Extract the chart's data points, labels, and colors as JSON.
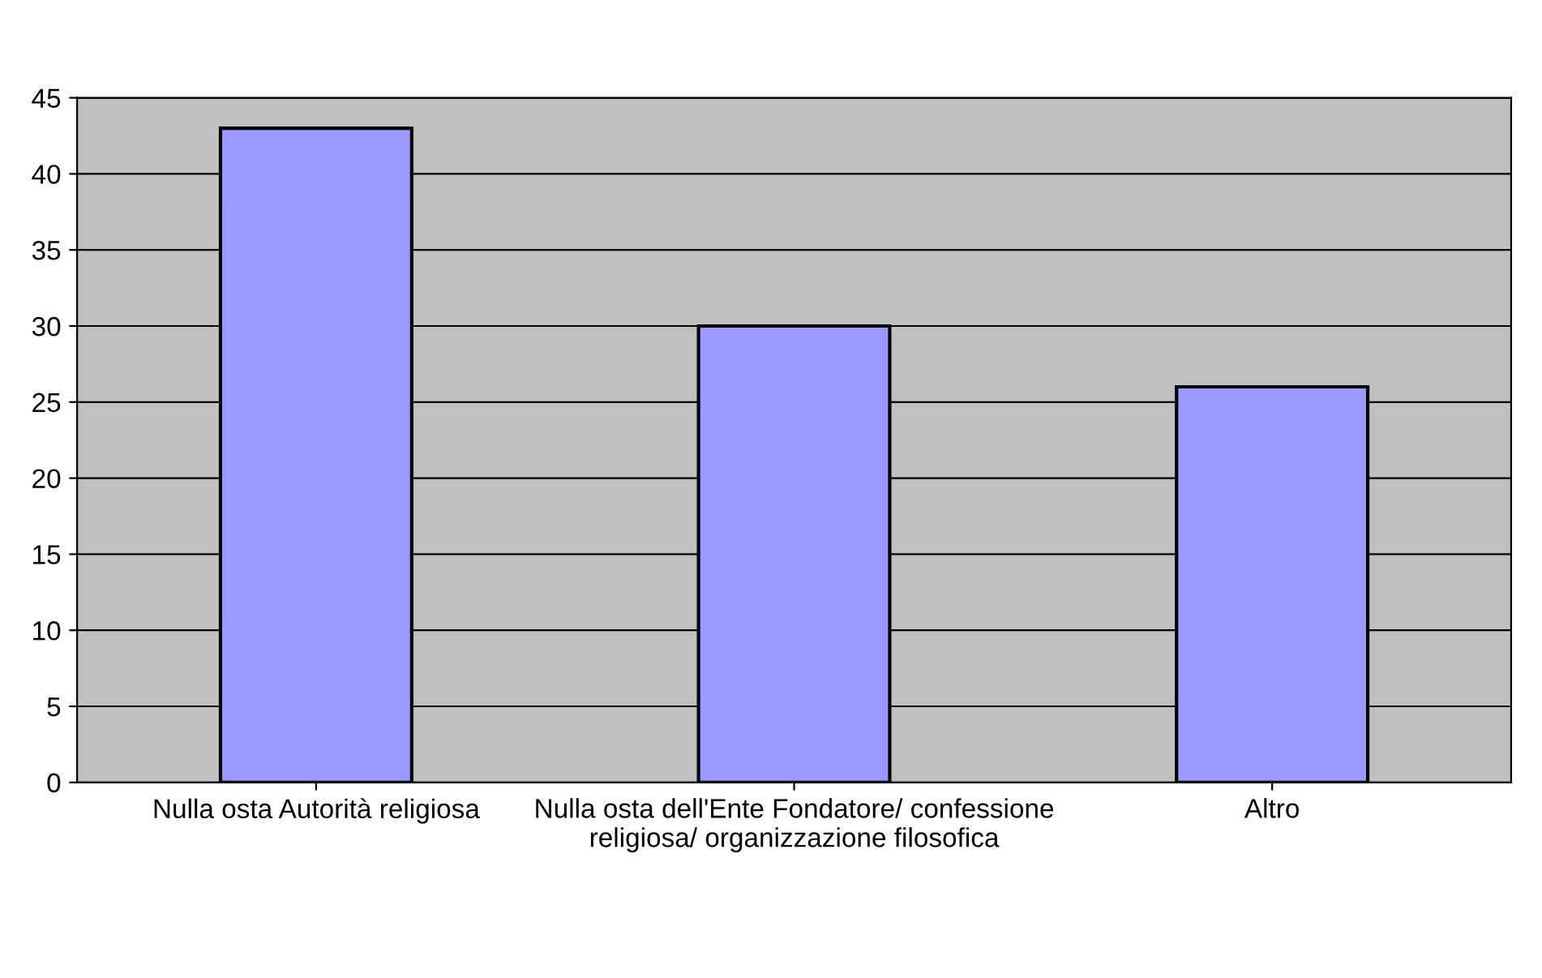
{
  "chart_data": {
    "type": "bar",
    "categories": [
      "Nulla osta Autorità religiosa",
      "Nulla osta dell'Ente Fondatore/ confessione religiosa/ organizzazione filosofica",
      "Altro"
    ],
    "values": [
      43,
      30,
      26
    ],
    "color": "#9999ff",
    "ylim": [
      0,
      45
    ],
    "yticks": [
      0,
      5,
      10,
      15,
      20,
      25,
      30,
      35,
      40,
      45
    ],
    "grid": "y",
    "legend": false
  }
}
